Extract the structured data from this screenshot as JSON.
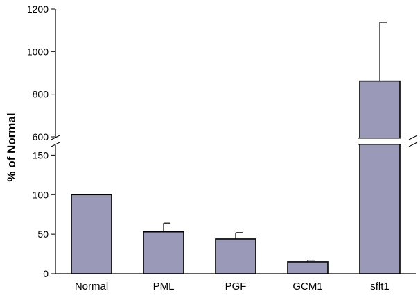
{
  "chart_data": {
    "type": "bar",
    "title": "",
    "xlabel": "",
    "ylabel": "% of Normal",
    "categories": [
      "Normal",
      "PML",
      "PGF",
      "GCM1",
      "sflt1"
    ],
    "series": [
      {
        "values": [
          100,
          53,
          44,
          15,
          862
        ],
        "errors": [
          0,
          11,
          8,
          2,
          276
        ]
      }
    ],
    "axis_break": {
      "lower_range": [
        0,
        160
      ],
      "upper_range": [
        600,
        1200
      ],
      "lower_ticks": [
        "0",
        "50",
        "100",
        "150"
      ],
      "upper_ticks": [
        "600",
        "800",
        "1000",
        "1200"
      ]
    },
    "bar_color": "#9a9ab8",
    "grid": false,
    "legend": "none"
  }
}
